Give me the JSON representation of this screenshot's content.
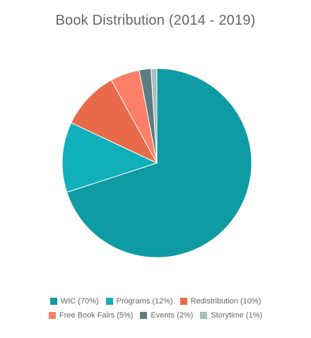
{
  "chart_data": {
    "type": "pie",
    "title": "Book Distribution (2014 - 2019)",
    "slices": [
      {
        "label": "WIC (70%)",
        "value": 70,
        "color": "#0f9ba3"
      },
      {
        "label": "Programs (12%)",
        "value": 12,
        "color": "#10b0bb"
      },
      {
        "label": "Redistribution (10%)",
        "value": 10,
        "color": "#e86a4a"
      },
      {
        "label": "Free Book Fairs (5%)",
        "value": 5,
        "color": "#fb7f67"
      },
      {
        "label": "Events (2%)",
        "value": 2,
        "color": "#5e7c7e"
      },
      {
        "label": "Storytime (1%)",
        "value": 1,
        "color": "#a7bfc2"
      }
    ],
    "legend_position": "bottom"
  }
}
